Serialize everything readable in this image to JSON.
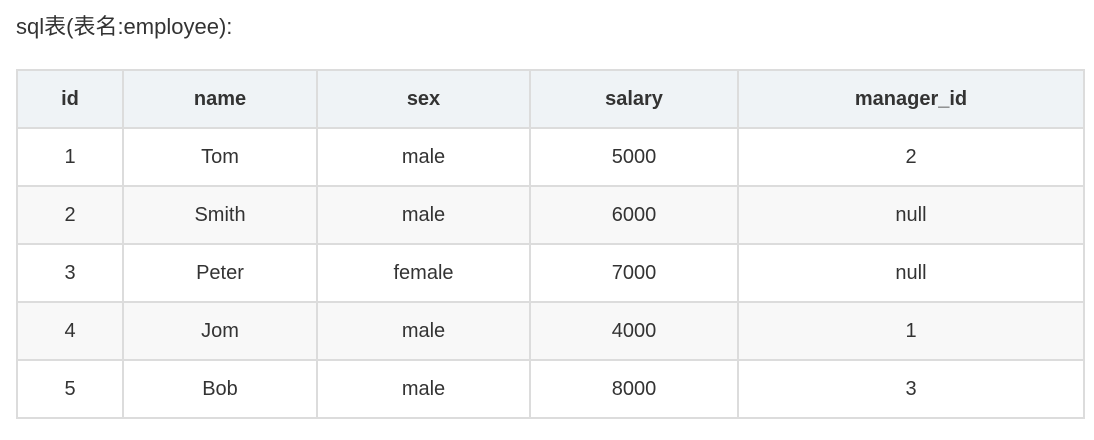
{
  "caption": "sql表(表名:employee):",
  "table": {
    "columns": [
      "id",
      "name",
      "sex",
      "salary",
      "manager_id"
    ],
    "rows": [
      [
        "1",
        "Tom",
        "male",
        "5000",
        "2"
      ],
      [
        "2",
        "Smith",
        "male",
        "6000",
        "null"
      ],
      [
        "3",
        "Peter",
        "female",
        "7000",
        "null"
      ],
      [
        "4",
        "Jom",
        "male",
        "4000",
        "1"
      ],
      [
        "5",
        "Bob",
        "male",
        "8000",
        "3"
      ]
    ]
  }
}
